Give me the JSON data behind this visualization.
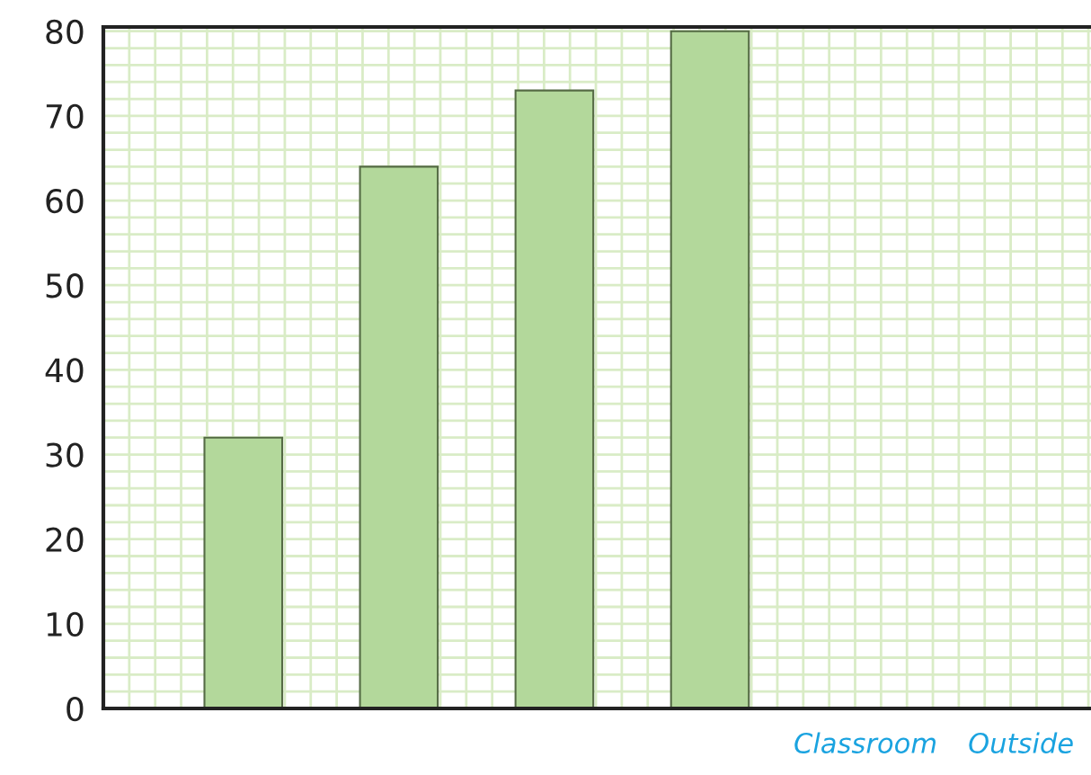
{
  "chart_data": {
    "type": "bar",
    "categories": [
      null,
      null,
      null,
      null,
      "Classroom",
      "Outside"
    ],
    "values": [
      32,
      64,
      73,
      80,
      null,
      null
    ],
    "color": "#b3d89b",
    "ylim": [
      0,
      80.5
    ],
    "yticks": [
      0,
      10,
      20,
      30,
      40,
      50,
      60,
      70,
      80
    ],
    "grid": true
  }
}
